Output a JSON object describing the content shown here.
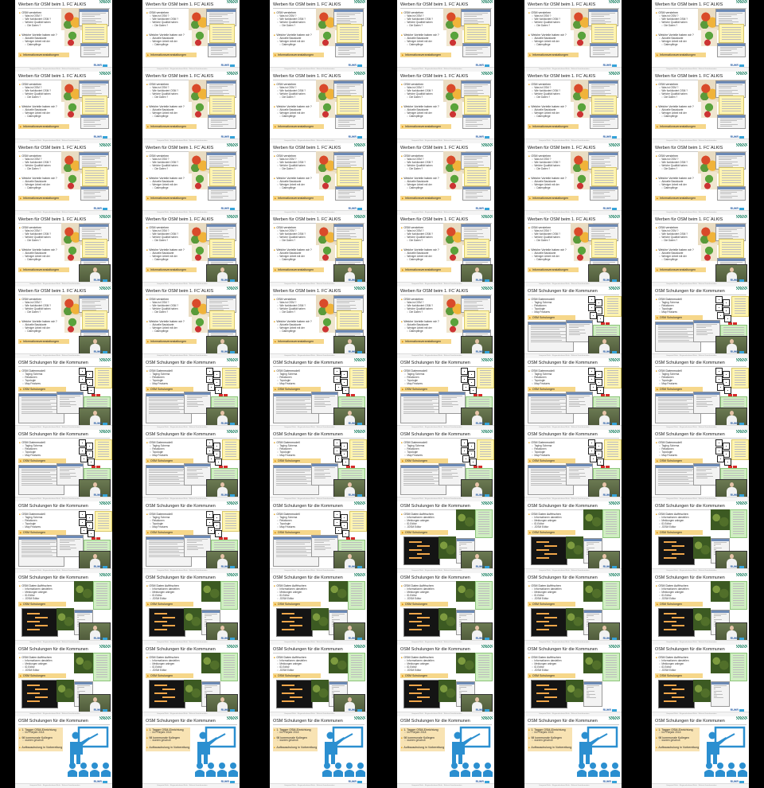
{
  "grid": {
    "rows": 11,
    "cols": 6
  },
  "slides": {
    "a": {
      "title": "Werben für OSM beim 1. FC´ALKIS",
      "b1": "OSM verstehen",
      "s1": "Was ist OSM ?",
      "s2": "Wie funktioniert OSM ?",
      "s3": "Welche Qualität haben",
      "s3b": "Die Daten ?",
      "b2": "Welche Vorteile haben wir ?",
      "s4": "Aktuelle Basiskarte",
      "s5": "Weniger Arbeit mit der",
      "s5b": "Datenpflege",
      "hl": "Informationsveranstaltungen"
    },
    "b": {
      "title": "OSM Schulungen für die Kommunen",
      "b1": "OSM Datenmodell",
      "s1": "Taging Schema",
      "s2": "Relationen",
      "s3": "Topologie",
      "s4": "Map Features",
      "hl": "OSM Schulungen"
    },
    "c": {
      "title": "OSM Schulungen für die Kommunen",
      "b1": "OSM Daten Auffrischen",
      "s1": "Informationen darstellen",
      "s2": "Meldungen anlegen",
      "s3": "iD-Editor",
      "s4": "JOSM Editor",
      "hl": "OSM Schulungen"
    },
    "d": {
      "title": "OSM Schulungen für die Kommunen",
      "b1": "1. Tagger OSM-Einrichtung",
      "b1b": "im Frühjahr 2018",
      "b2": "98 kommunale Kollegen",
      "b2b": "wurden geschult",
      "b3": "Aufbauschulung in Vorbereitung",
      "hl": ""
    }
  },
  "logo": "RUHR",
  "footer": "Geoportal Ruhr - Regionalverband Ruhr - Referat Geoinformation",
  "cells": [
    "a",
    "a",
    "a",
    "a",
    "a",
    "a",
    "a",
    "a",
    "a",
    "a",
    "a",
    "a",
    "a",
    "a",
    "a",
    "a",
    "a",
    "a",
    "av",
    "av",
    "av",
    "av",
    "av",
    "av",
    "av",
    "av",
    "av",
    "av",
    "bv",
    "bv",
    "bv",
    "bv",
    "bv",
    "bv",
    "bv",
    "bv",
    "bv",
    "bv",
    "bv",
    "bv",
    "bv",
    "bv",
    "bv",
    "bv",
    "bv",
    "cv",
    "cv",
    "cv",
    "cv",
    "cv",
    "cv",
    "cv",
    "cv",
    "cv",
    "cv",
    "cv",
    "cv",
    "cv",
    "c",
    "c",
    "d",
    "d",
    "d",
    "d",
    "d",
    "d"
  ],
  "colors": {
    "accent": "#e3a21a",
    "highlight": "#f6d78a",
    "brand": "#2b5fa6",
    "presenter_bg": "#5d6b45"
  }
}
